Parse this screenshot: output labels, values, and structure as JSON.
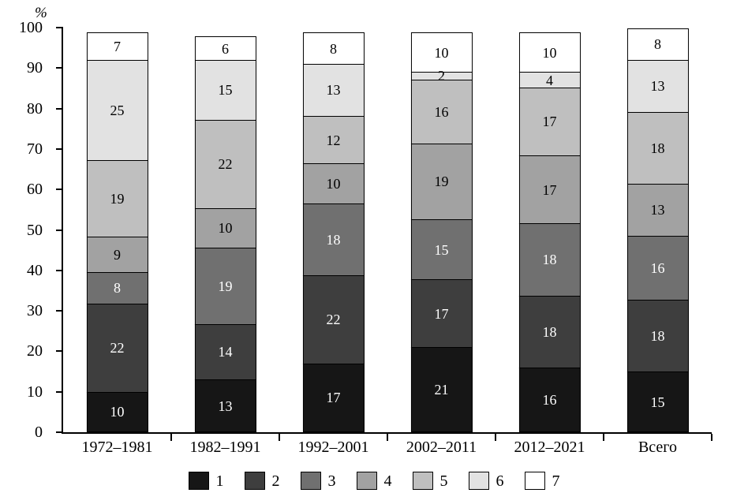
{
  "chart_data": {
    "type": "bar",
    "stacked": true,
    "title": "",
    "xlabel": "",
    "ylabel": "%",
    "ylim": [
      0,
      100
    ],
    "yticks": [
      0,
      10,
      20,
      30,
      40,
      50,
      60,
      70,
      80,
      90,
      100
    ],
    "grid": false,
    "legend_position": "bottom",
    "categories": [
      "1972–1981",
      "1982–1991",
      "1992–2001",
      "2002–2011",
      "2012–2021",
      "Всего"
    ],
    "series": [
      {
        "name": "1",
        "color": "#161616",
        "text_color": "#ffffff",
        "values": [
          10,
          13,
          17,
          21,
          16,
          15
        ]
      },
      {
        "name": "2",
        "color": "#3e3e3e",
        "text_color": "#ffffff",
        "values": [
          22,
          14,
          22,
          17,
          18,
          18
        ]
      },
      {
        "name": "3",
        "color": "#707070",
        "text_color": "#ffffff",
        "values": [
          8,
          19,
          18,
          15,
          18,
          16
        ]
      },
      {
        "name": "4",
        "color": "#a2a2a2",
        "text_color": "#000000",
        "values": [
          9,
          10,
          10,
          19,
          17,
          13
        ]
      },
      {
        "name": "5",
        "color": "#bfbfbf",
        "text_color": "#000000",
        "values": [
          19,
          22,
          12,
          16,
          17,
          18
        ]
      },
      {
        "name": "6",
        "color": "#e2e2e2",
        "text_color": "#000000",
        "values": [
          25,
          15,
          13,
          2,
          4,
          13
        ]
      },
      {
        "name": "7",
        "color": "#ffffff",
        "text_color": "#000000",
        "values": [
          7,
          6,
          8,
          10,
          10,
          8
        ]
      }
    ],
    "legend": [
      "1",
      "2",
      "3",
      "4",
      "5",
      "6",
      "7"
    ]
  }
}
